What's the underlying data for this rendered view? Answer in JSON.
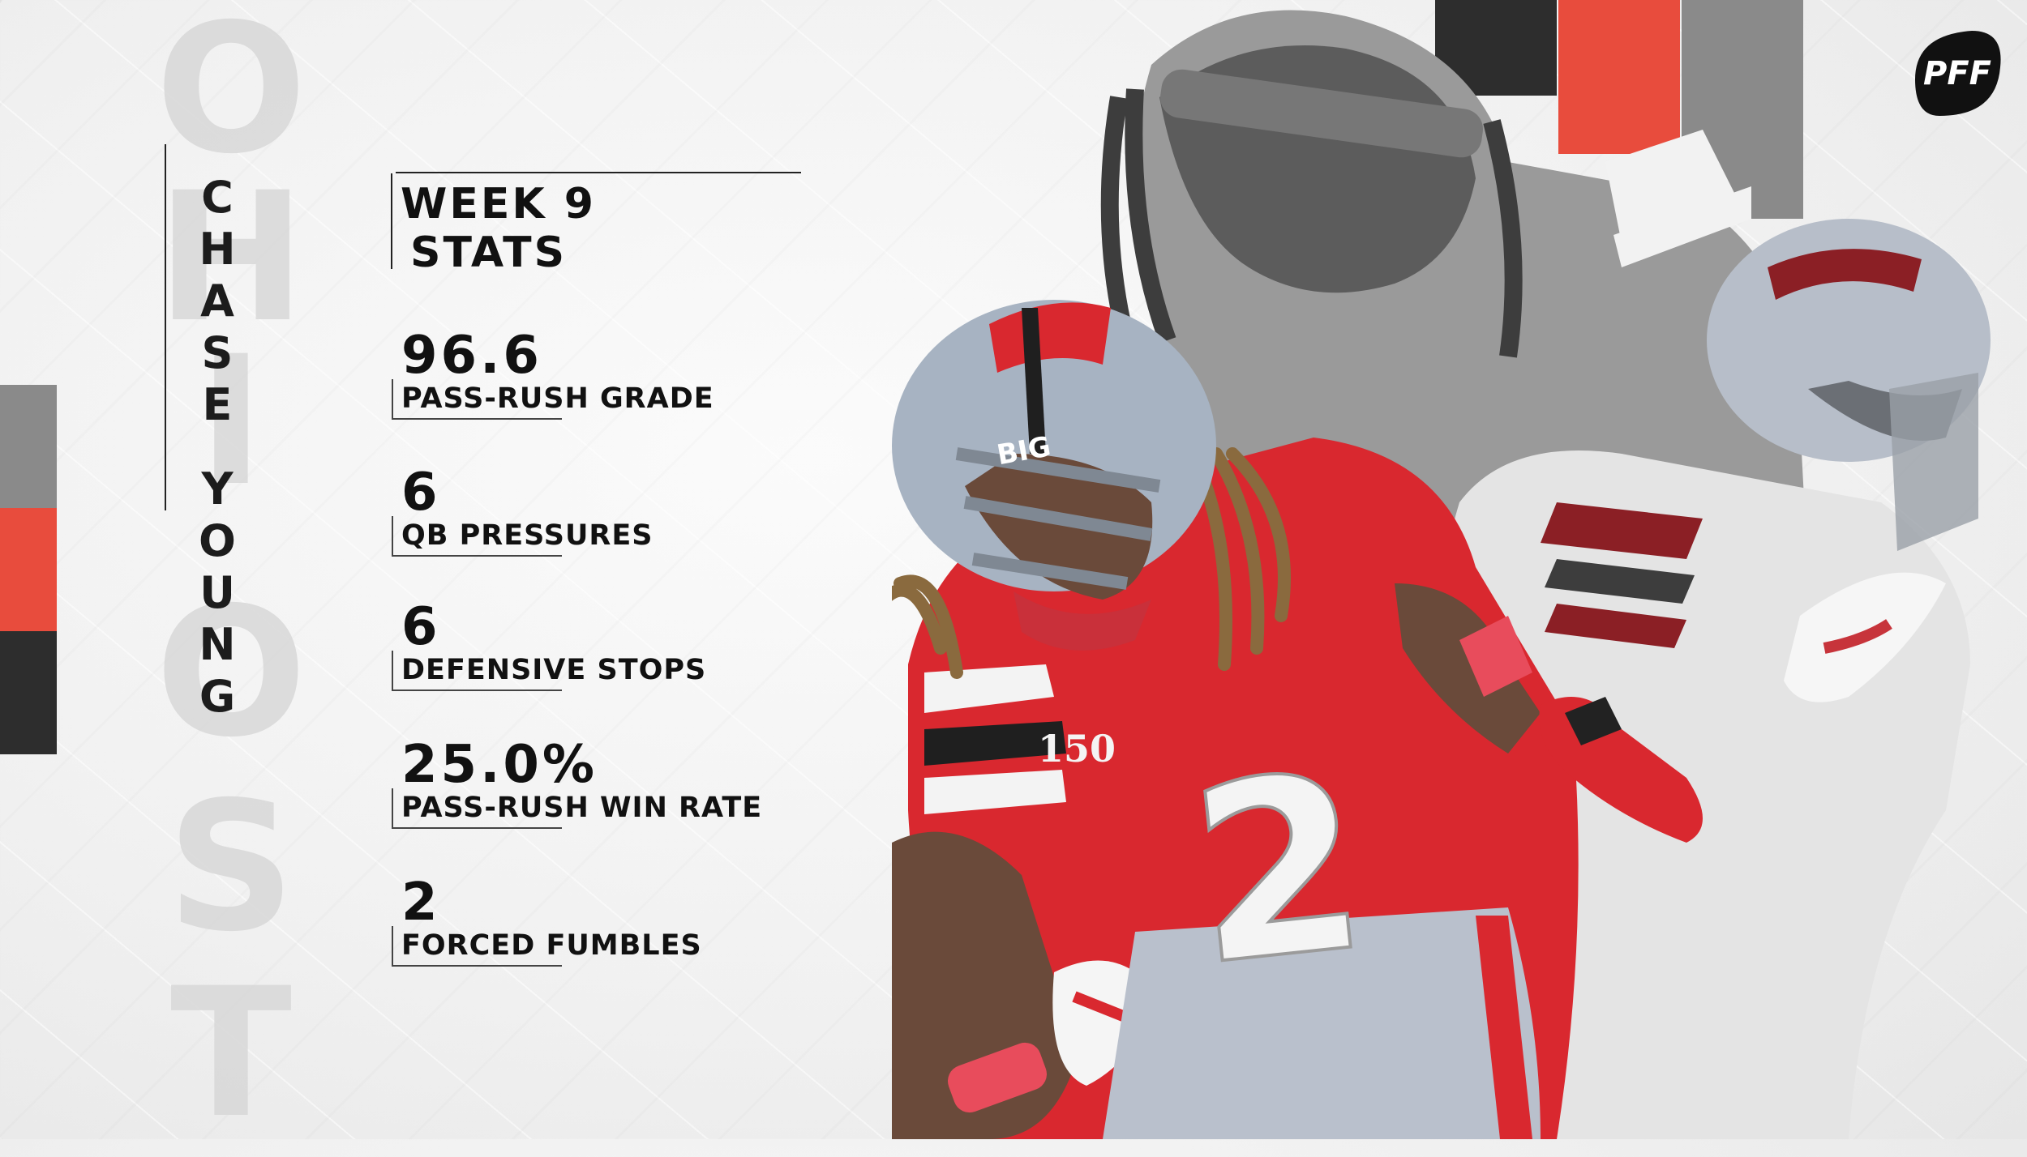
{
  "ghost_letters": [
    "O",
    "H",
    "I",
    "O",
    "S",
    "T"
  ],
  "player_name_letters": [
    "C",
    "H",
    "A",
    "S",
    "E",
    " ",
    "Y",
    "O",
    "U",
    "N",
    "G"
  ],
  "header": {
    "line1": "WEEK 9",
    "line2": "STATS"
  },
  "stats": [
    {
      "value": "96.6",
      "label": "PASS-RUSH GRADE"
    },
    {
      "value": "6",
      "label": "QB PRESSURES"
    },
    {
      "value": "6",
      "label": "DEFENSIVE STOPS"
    },
    {
      "value": "25.0%",
      "label": "PASS-RUSH WIN RATE"
    },
    {
      "value": "2",
      "label": "FORCED FUMBLES"
    }
  ],
  "logo": {
    "text": "PFF"
  },
  "jersey_number": "2",
  "helmet_text": "BIG",
  "patch_text": "150",
  "colors": {
    "scarlet": "#e84c3d",
    "gray_light": "#8a8a8a",
    "gray_dark": "#2d2d2d",
    "black": "#111111",
    "jersey_red": "#d9282f"
  }
}
